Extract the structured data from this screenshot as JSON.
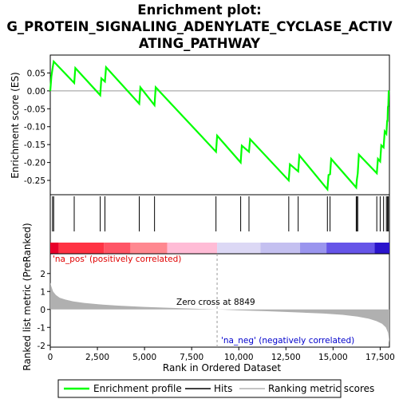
{
  "chart_data": {
    "type": "line",
    "title_lines": [
      "Enrichment plot:",
      "G_PROTEIN_SIGNALING_ADENYLATE_CYCLASE_ACTIV",
      "ATING_PATHWAY"
    ],
    "top_panel": {
      "ylabel": "Enrichment score (ES)",
      "ylim": [
        -0.29,
        0.1
      ],
      "yticks": [
        -0.25,
        -0.2,
        -0.15,
        -0.1,
        -0.05,
        0.0,
        0.05
      ],
      "ytick_labels": [
        "-0.25",
        "-0.20",
        "-0.15",
        "-0.10",
        "-0.05",
        "0.00",
        "0.05"
      ],
      "line_color": "#00ff00",
      "series": [
        {
          "name": "Enrichment profile",
          "x": [
            0,
            60,
            120,
            180,
            1270,
            1330,
            2650,
            2710,
            2900,
            2960,
            4720,
            4780,
            5530,
            5590,
            8790,
            8850,
            10100,
            10160,
            10540,
            10600,
            12650,
            12710,
            13150,
            13210,
            14700,
            14760,
            14840,
            14900,
            16230,
            16260,
            16310,
            16370,
            17320,
            17380,
            17500,
            17560,
            17680,
            17740,
            17830,
            17870,
            17890,
            17910,
            17930,
            17950,
            17990
          ],
          "y": [
            0.0,
            0.04,
            0.062,
            0.082,
            0.022,
            0.064,
            -0.012,
            0.035,
            0.026,
            0.066,
            -0.036,
            0.01,
            -0.04,
            0.01,
            -0.17,
            -0.125,
            -0.2,
            -0.153,
            -0.17,
            -0.135,
            -0.25,
            -0.205,
            -0.225,
            -0.18,
            -0.275,
            -0.235,
            -0.233,
            -0.19,
            -0.27,
            -0.25,
            -0.23,
            -0.178,
            -0.23,
            -0.19,
            -0.197,
            -0.152,
            -0.158,
            -0.113,
            -0.12,
            -0.082,
            -0.086,
            -0.045,
            -0.041,
            -0.001,
            0.0
          ]
        }
      ]
    },
    "hits": [
      120,
      180,
      1270,
      2650,
      2900,
      4720,
      5530,
      8790,
      10100,
      10540,
      12650,
      13150,
      14700,
      14840,
      16230,
      16260,
      16310,
      17320,
      17500,
      17680,
      17830,
      17890,
      17930
    ],
    "hits_label": "Hits",
    "color_band": {
      "stops": [
        {
          "from": 0,
          "to": 450,
          "color": "#e8002a"
        },
        {
          "from": 450,
          "to": 2850,
          "color": "#ff3344"
        },
        {
          "from": 2850,
          "to": 4250,
          "color": "#ff5566"
        },
        {
          "from": 4250,
          "to": 6200,
          "color": "#ff8890"
        },
        {
          "from": 6200,
          "to": 8849,
          "color": "#ffbcd6"
        },
        {
          "from": 8849,
          "to": 11150,
          "color": "#dcd8f5"
        },
        {
          "from": 11150,
          "to": 13250,
          "color": "#c4c0f0"
        },
        {
          "from": 13250,
          "to": 14650,
          "color": "#9a95ee"
        },
        {
          "from": 14650,
          "to": 17200,
          "color": "#6655e8"
        },
        {
          "from": 17200,
          "to": 17990,
          "color": "#2a14cc"
        }
      ]
    },
    "bottom_panel": {
      "ylabel": "Ranked list metric (PreRanked)",
      "ylim": [
        -2.1,
        3.1
      ],
      "yticks": [
        -2,
        -1,
        0,
        1,
        2
      ],
      "ytick_labels": [
        "-2",
        "-1",
        "0",
        "1",
        "2"
      ],
      "fill_color": "#b0b0b0",
      "metric_curve": {
        "x": [
          0,
          50,
          150,
          300,
          500,
          800,
          1200,
          1800,
          2600,
          3600,
          5000,
          6500,
          8000,
          8849,
          10000,
          11500,
          13000,
          14500,
          15500,
          16300,
          16900,
          17300,
          17600,
          17800,
          17920,
          17990
        ],
        "y": [
          1.5,
          1.3,
          1.0,
          0.8,
          0.65,
          0.55,
          0.45,
          0.36,
          0.28,
          0.21,
          0.14,
          0.08,
          0.03,
          0.0,
          -0.05,
          -0.1,
          -0.16,
          -0.23,
          -0.3,
          -0.4,
          -0.52,
          -0.65,
          -0.8,
          -1.0,
          -1.3,
          -1.85
        ]
      },
      "pos_label": "'na_pos' (positively correlated)",
      "neg_label": "'na_neg' (negatively correlated)",
      "zero_cross_label": "Zero cross at 8849",
      "zero_cross": 8849
    },
    "xaxis": {
      "xlabel": "Rank in Ordered Dataset",
      "xlim": [
        0,
        17990
      ],
      "xticks": [
        0,
        2500,
        5000,
        7500,
        10000,
        12500,
        15000,
        17500
      ],
      "xtick_labels": [
        "0",
        "2,500",
        "5,000",
        "7,500",
        "10,000",
        "12,500",
        "15,000",
        "17,500"
      ]
    },
    "legend": {
      "placement": "bottom",
      "items": [
        {
          "label": "Enrichment profile",
          "color": "#00ff00",
          "kind": "line"
        },
        {
          "label": "Hits",
          "color": "#000000",
          "kind": "line"
        },
        {
          "label": "Ranking metric scores",
          "color": "#b0b0b0",
          "kind": "line"
        }
      ]
    }
  }
}
